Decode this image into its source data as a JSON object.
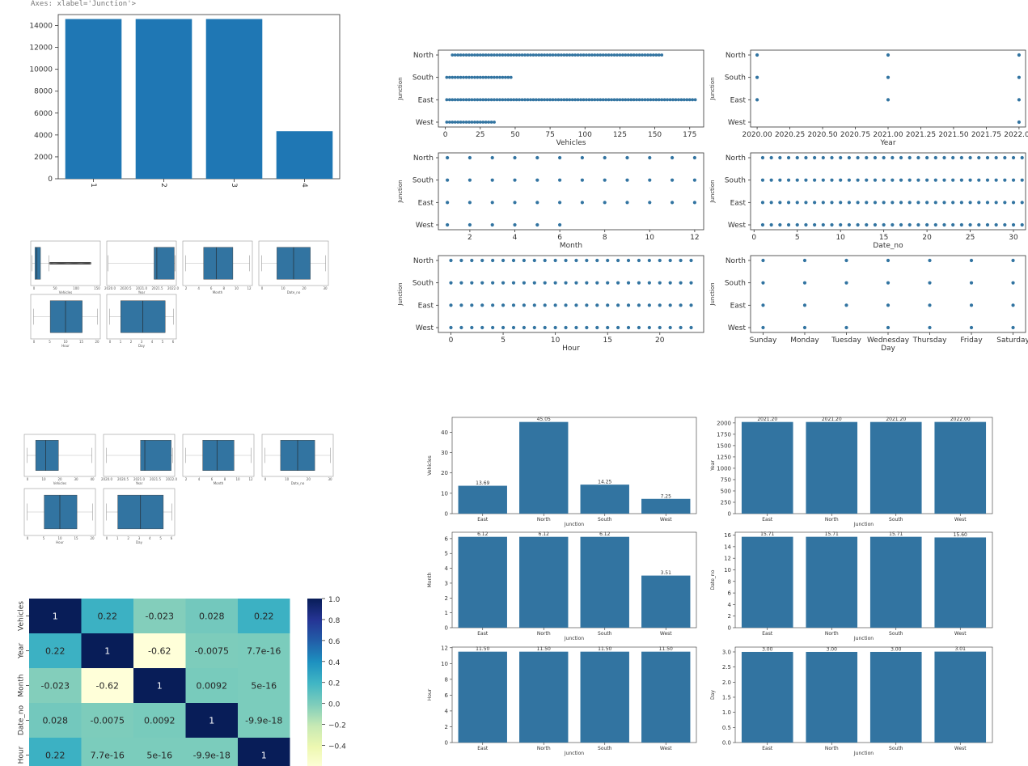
{
  "header_text": "Axes: xlabel='Junction'>",
  "colors": {
    "bar": "#1f77b4",
    "seaborn": "#3274a1",
    "axis": "#333333"
  },
  "chart_data": [
    {
      "id": "count_bar",
      "type": "bar",
      "categories": [
        "1",
        "2",
        "3",
        "4"
      ],
      "values": [
        14592,
        14592,
        14592,
        4344
      ],
      "ylim": [
        0,
        15000
      ],
      "yticks": [
        0,
        2000,
        4000,
        6000,
        8000,
        10000,
        12000,
        14000
      ]
    },
    {
      "id": "scatter_grid",
      "type": "scatter",
      "y_categories": [
        "North",
        "South",
        "East",
        "West"
      ],
      "ylabel": "Junction",
      "panels": [
        {
          "xlabel": "Vehicles",
          "xlim": [
            -5,
            185
          ],
          "xticks": [
            "0",
            "25",
            "50",
            "75",
            "100",
            "125",
            "150",
            "175"
          ],
          "xtick_values": [
            0,
            25,
            50,
            75,
            100,
            125,
            150,
            175
          ],
          "ranges": {
            "North": [
              5,
              156
            ],
            "South": [
              1,
              48
            ],
            "East": [
              1,
              180
            ],
            "West": [
              1,
              36
            ]
          }
        },
        {
          "xlabel": "Year",
          "xlim": [
            2019.95,
            2022.05
          ],
          "xticks": [
            "2020.00",
            "2020.25",
            "2020.50",
            "2020.75",
            "2021.00",
            "2021.25",
            "2021.50",
            "2021.75",
            "2022.00"
          ],
          "xtick_values": [
            2020,
            2020.25,
            2020.5,
            2020.75,
            2021,
            2021.25,
            2021.5,
            2021.75,
            2022
          ],
          "points": {
            "North": [
              2020,
              2021,
              2022
            ],
            "South": [
              2020,
              2021,
              2022
            ],
            "East": [
              2020,
              2021,
              2022
            ],
            "West": [
              2022
            ]
          }
        },
        {
          "xlabel": "Month",
          "xlim": [
            0.6,
            12.4
          ],
          "xticks": [
            "2",
            "4",
            "6",
            "8",
            "10",
            "12"
          ],
          "xtick_values": [
            2,
            4,
            6,
            8,
            10,
            12
          ],
          "points": {
            "North": [
              1,
              2,
              3,
              4,
              5,
              6,
              7,
              8,
              9,
              10,
              11,
              12
            ],
            "South": [
              1,
              2,
              3,
              4,
              5,
              6,
              7,
              8,
              9,
              10,
              11,
              12
            ],
            "East": [
              1,
              2,
              3,
              4,
              5,
              6,
              7,
              8,
              9,
              10,
              11,
              12
            ],
            "West": [
              1,
              2,
              3,
              4,
              5,
              6
            ]
          }
        },
        {
          "xlabel": "Date_no",
          "xlim": [
            -0.4,
            31.4
          ],
          "xticks": [
            "0",
            "5",
            "10",
            "15",
            "20",
            "25",
            "30"
          ],
          "xtick_values": [
            0,
            5,
            10,
            15,
            20,
            25,
            30
          ],
          "points": {
            "North": [
              1,
              2,
              3,
              4,
              5,
              6,
              7,
              8,
              9,
              10,
              11,
              12,
              13,
              14,
              15,
              16,
              17,
              18,
              19,
              20,
              21,
              22,
              23,
              24,
              25,
              26,
              27,
              28,
              29,
              30,
              31
            ],
            "South": [
              1,
              2,
              3,
              4,
              5,
              6,
              7,
              8,
              9,
              10,
              11,
              12,
              13,
              14,
              15,
              16,
              17,
              18,
              19,
              20,
              21,
              22,
              23,
              24,
              25,
              26,
              27,
              28,
              29,
              30,
              31
            ],
            "East": [
              1,
              2,
              3,
              4,
              5,
              6,
              7,
              8,
              9,
              10,
              11,
              12,
              13,
              14,
              15,
              16,
              17,
              18,
              19,
              20,
              21,
              22,
              23,
              24,
              25,
              26,
              27,
              28,
              29,
              30,
              31
            ],
            "West": [
              1,
              2,
              3,
              4,
              5,
              6,
              7,
              8,
              9,
              10,
              11,
              12,
              13,
              14,
              15,
              16,
              17,
              18,
              19,
              20,
              21,
              22,
              23,
              24,
              25,
              26,
              27,
              28,
              29,
              30,
              31
            ]
          }
        },
        {
          "xlabel": "Hour",
          "xlim": [
            -1.2,
            24.2
          ],
          "xticks": [
            "0",
            "5",
            "10",
            "15",
            "20"
          ],
          "xtick_values": [
            0,
            5,
            10,
            15,
            20
          ],
          "points": {
            "North": [
              0,
              1,
              2,
              3,
              4,
              5,
              6,
              7,
              8,
              9,
              10,
              11,
              12,
              13,
              14,
              15,
              16,
              17,
              18,
              19,
              20,
              21,
              22,
              23
            ],
            "South": [
              0,
              1,
              2,
              3,
              4,
              5,
              6,
              7,
              8,
              9,
              10,
              11,
              12,
              13,
              14,
              15,
              16,
              17,
              18,
              19,
              20,
              21,
              22,
              23
            ],
            "East": [
              0,
              1,
              2,
              3,
              4,
              5,
              6,
              7,
              8,
              9,
              10,
              11,
              12,
              13,
              14,
              15,
              16,
              17,
              18,
              19,
              20,
              21,
              22,
              23
            ],
            "West": [
              0,
              1,
              2,
              3,
              4,
              5,
              6,
              7,
              8,
              9,
              10,
              11,
              12,
              13,
              14,
              15,
              16,
              17,
              18,
              19,
              20,
              21,
              22,
              23
            ]
          }
        },
        {
          "xlabel": "Day",
          "xlim": [
            -0.3,
            6.3
          ],
          "xticks": [
            "Sunday",
            "Monday",
            "Tuesday",
            "Wednesday",
            "Thursday",
            "Friday",
            "Saturday"
          ],
          "xtick_values": [
            0,
            1,
            2,
            3,
            4,
            5,
            6
          ],
          "points": {
            "North": [
              0,
              1,
              2,
              3,
              4,
              5,
              6
            ],
            "South": [
              0,
              1,
              2,
              3,
              4,
              5,
              6
            ],
            "East": [
              0,
              1,
              2,
              3,
              4,
              5,
              6
            ],
            "West": [
              0,
              1,
              2,
              3,
              4,
              5,
              6
            ]
          }
        }
      ]
    },
    {
      "id": "boxplots_a",
      "type": "box",
      "panels": [
        {
          "xlabel": "Vehicles",
          "q": [
            0.02,
            0.06,
            0.09,
            0.14,
            0.26
          ],
          "outliers": [
            0.28,
            0.86
          ],
          "ticks": [
            "0",
            "50",
            "100",
            "150"
          ]
        },
        {
          "xlabel": "Year",
          "q": [
            0.02,
            0.68,
            0.72,
            0.97,
            0.98
          ],
          "outliers": null,
          "ticks": [
            "2020.0",
            "2020.5",
            "2021.0",
            "2021.5",
            "2022.0"
          ]
        },
        {
          "xlabel": "Month",
          "q": [
            0.04,
            0.3,
            0.48,
            0.72,
            0.96
          ],
          "outliers": null,
          "ticks": [
            "2",
            "4",
            "6",
            "8",
            "10",
            "12"
          ]
        },
        {
          "xlabel": "Date_no",
          "q": [
            0.04,
            0.26,
            0.5,
            0.74,
            0.96
          ],
          "outliers": null,
          "ticks": [
            "0",
            "10",
            "20",
            "30"
          ]
        },
        {
          "xlabel": "Hour",
          "q": [
            0.04,
            0.28,
            0.5,
            0.74,
            0.96
          ],
          "outliers": null,
          "ticks": [
            "0",
            "5",
            "10",
            "15",
            "20"
          ]
        },
        {
          "xlabel": "Day",
          "q": [
            0.04,
            0.2,
            0.52,
            0.84,
            0.96
          ],
          "outliers": null,
          "ticks": [
            "0",
            "1",
            "2",
            "3",
            "4",
            "5",
            "6"
          ]
        }
      ]
    },
    {
      "id": "boxplots_b",
      "type": "box",
      "panels": [
        {
          "xlabel": "Vehicles",
          "q": [
            0.04,
            0.16,
            0.3,
            0.48,
            0.95
          ],
          "outliers": null,
          "ticks": [
            "0",
            "10",
            "20",
            "30",
            "40"
          ]
        },
        {
          "xlabel": "Year",
          "q": [
            0.04,
            0.52,
            0.58,
            0.95,
            0.97
          ],
          "outliers": null,
          "ticks": [
            "2020.0",
            "2020.5",
            "2021.0",
            "2021.5",
            "2022.0"
          ]
        },
        {
          "xlabel": "Month",
          "q": [
            0.04,
            0.28,
            0.48,
            0.72,
            0.96
          ],
          "outliers": null,
          "ticks": [
            "2",
            "4",
            "6",
            "8",
            "10",
            "12"
          ]
        },
        {
          "xlabel": "Date_no",
          "q": [
            0.04,
            0.26,
            0.5,
            0.74,
            0.96
          ],
          "outliers": null,
          "ticks": [
            "0",
            "10",
            "20",
            "30"
          ]
        },
        {
          "xlabel": "Hour",
          "q": [
            0.04,
            0.28,
            0.5,
            0.74,
            0.96
          ],
          "outliers": null,
          "ticks": [
            "0",
            "5",
            "10",
            "15",
            "20"
          ]
        },
        {
          "xlabel": "Day",
          "q": [
            0.04,
            0.2,
            0.52,
            0.84,
            0.96
          ],
          "outliers": null,
          "ticks": [
            "0",
            "1",
            "2",
            "3",
            "4",
            "5",
            "6"
          ]
        }
      ]
    },
    {
      "id": "correlation_heatmap",
      "type": "heatmap",
      "labels": [
        "Vehicles",
        "Year",
        "Month",
        "Date_no",
        "Hour"
      ],
      "values": [
        [
          1,
          0.22,
          -0.023,
          0.028,
          0.22
        ],
        [
          0.22,
          1,
          -0.62,
          -0.0075,
          7.7e-16
        ],
        [
          -0.023,
          -0.62,
          1,
          0.0092,
          5e-16
        ],
        [
          0.028,
          -0.0075,
          0.0092,
          1,
          -9.9e-18
        ],
        [
          0.22,
          7.7e-16,
          5e-16,
          -9.9e-18,
          1
        ]
      ],
      "cell_text": [
        [
          "1",
          "0.22",
          "-0.023",
          "0.028",
          "0.22"
        ],
        [
          "0.22",
          "1",
          "-0.62",
          "-0.0075",
          "7.7e-16"
        ],
        [
          "-0.023",
          "-0.62",
          "1",
          "0.0092",
          "5e-16"
        ],
        [
          "0.028",
          "-0.0075",
          "0.0092",
          "1",
          "-9.9e-18"
        ],
        [
          "0.22",
          "7.7e-16",
          "5e-16",
          "-9.9e-18",
          "1"
        ]
      ],
      "colorbar_ticks": [
        "1.0",
        "0.8",
        "0.6",
        "0.4",
        "0.2",
        "0.0",
        "−0.2",
        "−0.4"
      ],
      "colorbar_tick_values": [
        1.0,
        0.8,
        0.6,
        0.4,
        0.2,
        0.0,
        -0.2,
        -0.4
      ],
      "colorbar_range": [
        -0.62,
        1.0
      ],
      "colormap": "YlGnBu"
    },
    {
      "id": "mean_bars",
      "type": "bar",
      "categories": [
        "East",
        "North",
        "South",
        "West"
      ],
      "xlabel": "Junction",
      "panels": [
        {
          "ylabel": "Vehicles",
          "values": [
            13.69,
            45.05,
            14.25,
            7.25
          ],
          "labels": [
            "13.69",
            "45.05",
            "14.25",
            "7.25"
          ],
          "ylim": [
            0,
            47.3
          ],
          "yticks": [
            0,
            10,
            20,
            30,
            40
          ]
        },
        {
          "ylabel": "Year",
          "values": [
            2021.2,
            2021.2,
            2021.2,
            2022.0
          ],
          "labels": [
            "2021.20",
            "2021.20",
            "2021.20",
            "2022.00"
          ],
          "ylim": [
            0,
            2122.6
          ],
          "yticks": [
            0,
            250,
            500,
            750,
            1000,
            1250,
            1500,
            1750,
            2000
          ]
        },
        {
          "ylabel": "Month",
          "values": [
            6.12,
            6.12,
            6.12,
            3.51
          ],
          "labels": [
            "6.12",
            "6.12",
            "6.12",
            "3.51"
          ],
          "ylim": [
            0,
            6.43
          ],
          "yticks": [
            0,
            1,
            2,
            3,
            4,
            5,
            6
          ]
        },
        {
          "ylabel": "Date_no",
          "values": [
            15.71,
            15.71,
            15.71,
            15.6
          ],
          "labels": [
            "15.71",
            "15.71",
            "15.71",
            "15.60"
          ],
          "ylim": [
            0,
            16.5
          ],
          "yticks": [
            0,
            2,
            4,
            6,
            8,
            10,
            12,
            14,
            16
          ]
        },
        {
          "ylabel": "Hour",
          "values": [
            11.5,
            11.5,
            11.5,
            11.5
          ],
          "labels": [
            "11.50",
            "11.50",
            "11.50",
            "11.50"
          ],
          "ylim": [
            0,
            12.08
          ],
          "yticks": [
            0,
            2,
            4,
            6,
            8,
            10,
            12
          ]
        },
        {
          "ylabel": "Day",
          "values": [
            3.0,
            3.0,
            3.0,
            3.01
          ],
          "labels": [
            "3.00",
            "3.00",
            "3.00",
            "3.01"
          ],
          "ylim": [
            0,
            3.16
          ],
          "yticks": [
            "0.0",
            "0.5",
            "1.0",
            "1.5",
            "2.0",
            "2.5",
            "3.0"
          ],
          "ytick_values": [
            0,
            0.5,
            1.0,
            1.5,
            2.0,
            2.5,
            3.0
          ]
        }
      ]
    }
  ]
}
